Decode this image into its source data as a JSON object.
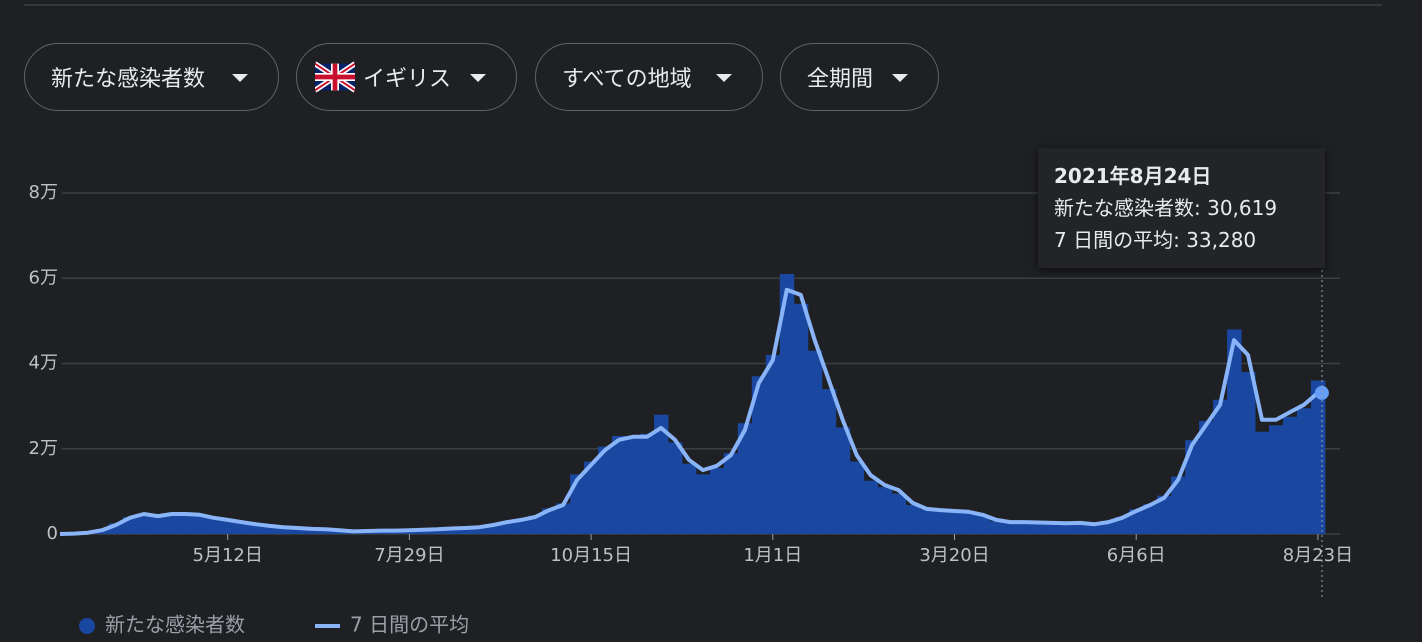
{
  "filters": [
    "新たな感染者数",
    "イギリス",
    "すべての地域",
    "全期間"
  ],
  "tooltip": {
    "title": "2021年8月24日",
    "lines": [
      "新たな感染者数: 30,619",
      "7 日間の平均: 33,280"
    ]
  },
  "chart_data": {
    "type": "bar-line",
    "categories": [
      null,
      null,
      null,
      null,
      null,
      null,
      null,
      null,
      null,
      null,
      null,
      null,
      null,
      "5月12日",
      null,
      null,
      null,
      null,
      null,
      null,
      null,
      null,
      null,
      null,
      null,
      null,
      "7月29日",
      null,
      null,
      null,
      null,
      null,
      null,
      null,
      null,
      null,
      null,
      null,
      null,
      "10月15日",
      null,
      null,
      null,
      null,
      null,
      null,
      null,
      null,
      null,
      null,
      null,
      null,
      "1月1日",
      null,
      null,
      null,
      null,
      null,
      null,
      null,
      null,
      null,
      null,
      null,
      null,
      "3月20日",
      null,
      null,
      null,
      null,
      null,
      null,
      null,
      null,
      null,
      null,
      null,
      null,
      "6月6日",
      null,
      null,
      null,
      null,
      null,
      null,
      null,
      null,
      null,
      null,
      null,
      null,
      "8月23日"
    ],
    "series": [
      {
        "name": "新たな感染者数",
        "color": "#1a47a0",
        "kind": "bar",
        "values": [
          null,
          null,
          100,
          400,
          1000,
          2500,
          4000,
          4800,
          4000,
          4600,
          4800,
          4300,
          3700,
          3200,
          2600,
          2200,
          1800,
          1500,
          1300,
          1100,
          1000,
          800,
          600,
          700,
          800,
          800,
          900,
          1000,
          1100,
          1300,
          1500,
          1700,
          2200,
          3000,
          3500,
          4300,
          6000,
          7200,
          14000,
          17000,
          20500,
          23000,
          22500,
          23500,
          28000,
          21500,
          16500,
          14000,
          15500,
          19000,
          26000,
          37000,
          42000,
          61000,
          54000,
          43000,
          34000,
          25000,
          17000,
          12500,
          11000,
          9500,
          6800,
          5800,
          5500,
          5300,
          5000,
          4400,
          3100,
          2700,
          2900,
          2600,
          2500,
          2400,
          2700,
          2200,
          3000,
          4000,
          5800,
          7000,
          9000,
          13500,
          22000,
          26500,
          31500,
          48000,
          38000,
          24000,
          25500,
          27500,
          29500,
          36000
        ]
      },
      {
        "name": "7 日間の平均",
        "color": "#8ab4f8",
        "kind": "line",
        "values": [
          null,
          0,
          100,
          300,
          900,
          2100,
          3800,
          4700,
          4200,
          4700,
          4700,
          4500,
          3800,
          3300,
          2800,
          2300,
          1900,
          1600,
          1400,
          1200,
          1100,
          900,
          600,
          700,
          800,
          800,
          900,
          1000,
          1100,
          1300,
          1400,
          1600,
          2100,
          2800,
          3300,
          4000,
          5600,
          6800,
          12700,
          16200,
          19700,
          22100,
          22800,
          22800,
          24900,
          22100,
          17400,
          15000,
          16000,
          18500,
          24400,
          35400,
          40800,
          57300,
          56100,
          45500,
          36200,
          26800,
          18500,
          13800,
          11500,
          10300,
          7300,
          5900,
          5600,
          5400,
          5200,
          4500,
          3300,
          2800,
          2800,
          2700,
          2600,
          2500,
          2600,
          2300,
          2800,
          3800,
          5400,
          6800,
          8500,
          12700,
          20900,
          25600,
          30300,
          45500,
          42000,
          26800,
          26800,
          28600,
          30300,
          33100
        ]
      }
    ],
    "ylim": [
      0,
      80000
    ],
    "yticks": [
      0,
      {
        "value": 20000,
        "label": "2万"
      },
      {
        "value": 40000,
        "label": "4万"
      },
      {
        "value": 60000,
        "label": "6万"
      },
      {
        "value": 80000,
        "label": "8万"
      }
    ],
    "grid": true
  }
}
